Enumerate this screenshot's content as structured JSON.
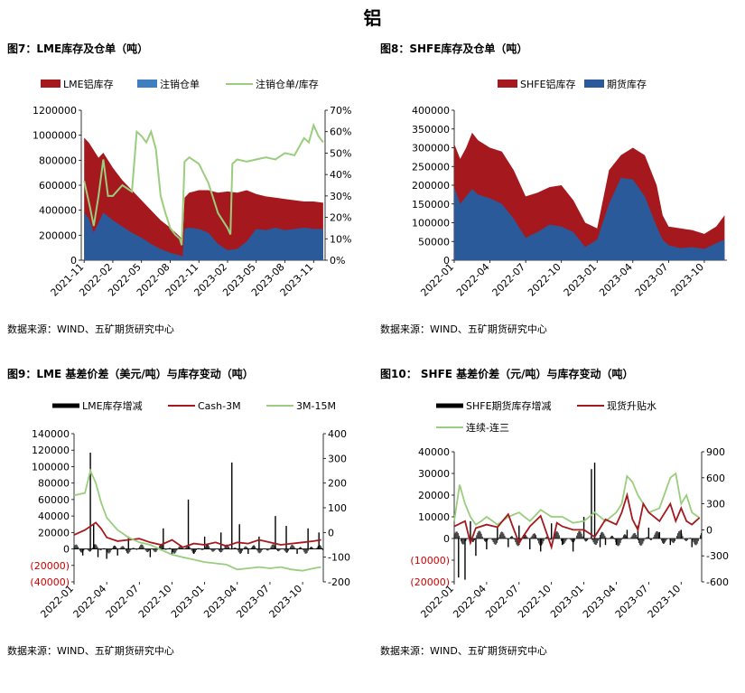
{
  "page_title": "铝",
  "colors": {
    "lme_stock": "#A5191E",
    "cancelled": "#3F7EC1",
    "ratio": "#9ACD7E",
    "shfe_stock": "#A5191E",
    "futures_stock": "#2A5A9A",
    "bars": "#000000",
    "cash3m": "#A5191E",
    "m3m15": "#9ACD7E",
    "negative_label": "#D00000"
  },
  "chart_data": [
    {
      "id": "fig7",
      "type": "area",
      "title": "图7：LME库存及仓单（吨）",
      "source": "数据来源：WIND、五矿期货研究中心",
      "legend": [
        "LME铝库存",
        "注销仓单",
        "注销仓单/库存"
      ],
      "x_ticks": [
        "2021-11",
        "2022-02",
        "2022-05",
        "2022-08",
        "2022-11",
        "2023-02",
        "2023-05",
        "2023-08",
        "2023-11"
      ],
      "y_left_ticks": [
        "0",
        "200000",
        "400000",
        "600000",
        "800000",
        "1000000",
        "1200000"
      ],
      "y_right_ticks": [
        "0%",
        "10%",
        "20%",
        "30%",
        "40%",
        "50%",
        "60%",
        "70%"
      ],
      "ylim_left": [
        0,
        1200000
      ],
      "ylim_right": [
        0,
        70
      ],
      "x_range_months": [
        -0.3,
        25.2
      ],
      "series": [
        {
          "name": "LME铝库存",
          "axis": "left",
          "x": [
            0,
            0.5,
            1,
            1.5,
            2,
            3,
            4,
            5,
            6,
            7,
            8,
            9,
            10,
            10.3,
            10.5,
            11,
            12,
            13,
            14,
            15,
            16,
            17,
            18,
            19,
            20,
            21,
            22,
            23,
            24,
            25
          ],
          "y": [
            980000,
            940000,
            880000,
            820000,
            860000,
            740000,
            640000,
            560000,
            480000,
            400000,
            320000,
            260000,
            190000,
            160000,
            500000,
            540000,
            560000,
            560000,
            540000,
            550000,
            540000,
            560000,
            530000,
            510000,
            500000,
            490000,
            480000,
            470000,
            470000,
            460000
          ]
        },
        {
          "name": "注销仓单",
          "axis": "left",
          "x": [
            0,
            0.5,
            1,
            1.5,
            2,
            3,
            4,
            5,
            6,
            7,
            8,
            9,
            10,
            10.3,
            10.5,
            11,
            12,
            13,
            14,
            15,
            16,
            17,
            18,
            19,
            20,
            21,
            22,
            23,
            24,
            25
          ],
          "y": [
            380000,
            330000,
            220000,
            300000,
            380000,
            320000,
            270000,
            220000,
            180000,
            130000,
            90000,
            60000,
            40000,
            30000,
            250000,
            260000,
            250000,
            220000,
            130000,
            80000,
            90000,
            150000,
            250000,
            240000,
            260000,
            240000,
            250000,
            260000,
            250000,
            250000
          ]
        },
        {
          "name": "注销仓单/库存",
          "axis": "right",
          "x": [
            0,
            0.6,
            1,
            1.5,
            2,
            2.5,
            3,
            4,
            5,
            5.5,
            6,
            6.5,
            7,
            7.5,
            8,
            8.5,
            9,
            9.5,
            10,
            10.2,
            10.5,
            11,
            12,
            13,
            14,
            15,
            15.3,
            15.5,
            16,
            17,
            18,
            19,
            20,
            21,
            22,
            23,
            23.5,
            24,
            24.5,
            25
          ],
          "y": [
            37,
            25,
            16,
            30,
            47,
            30,
            30,
            35,
            32,
            60,
            58,
            55,
            60,
            52,
            30,
            22,
            15,
            12,
            10,
            7,
            46,
            48,
            45,
            36,
            22,
            15,
            12,
            45,
            47,
            46,
            47,
            48,
            47,
            50,
            49,
            57,
            55,
            63,
            58,
            55
          ]
        }
      ]
    },
    {
      "id": "fig8",
      "type": "area",
      "title": "图8：SHFE库存及仓单（吨）",
      "source": "数据来源：WIND、五矿期货研究中心",
      "legend": [
        "SHFE铝库存",
        "期货库存"
      ],
      "x_ticks": [
        "2022-01",
        "2022-04",
        "2022-07",
        "2022-10",
        "2023-01",
        "2023-04",
        "2023-07",
        "2023-10"
      ],
      "y_left_ticks": [
        "0",
        "50000",
        "100000",
        "150000",
        "200000",
        "250000",
        "300000",
        "350000",
        "400000"
      ],
      "ylim_left": [
        0,
        400000
      ],
      "x_range_months": [
        0,
        22.9
      ],
      "series": [
        {
          "name": "SHFE铝库存",
          "x": [
            0,
            0.5,
            1,
            1.5,
            2,
            3,
            4,
            5,
            6,
            7,
            8,
            9,
            10,
            11,
            12,
            13,
            14,
            15,
            16,
            17,
            17.5,
            18,
            19,
            20,
            21,
            22,
            22.7
          ],
          "y": [
            310000,
            270000,
            300000,
            340000,
            320000,
            300000,
            290000,
            240000,
            170000,
            180000,
            195000,
            200000,
            160000,
            100000,
            85000,
            240000,
            280000,
            300000,
            280000,
            200000,
            120000,
            90000,
            85000,
            80000,
            70000,
            90000,
            120000
          ]
        },
        {
          "name": "期货库存",
          "x": [
            0,
            0.5,
            1,
            1.5,
            2,
            3,
            4,
            5,
            6,
            7,
            8,
            9,
            10,
            11,
            12,
            13,
            14,
            15,
            16,
            17,
            17.5,
            18,
            19,
            20,
            21,
            22,
            22.7
          ],
          "y": [
            195000,
            150000,
            170000,
            190000,
            175000,
            165000,
            150000,
            110000,
            60000,
            75000,
            95000,
            90000,
            75000,
            35000,
            55000,
            150000,
            220000,
            215000,
            170000,
            90000,
            55000,
            40000,
            32000,
            35000,
            30000,
            45000,
            55000
          ]
        }
      ]
    },
    {
      "id": "fig9",
      "type": "line",
      "title": "图9：LME 基差价差（美元/吨）与库存变动（吨）",
      "source": "数据来源：WIND、五矿期货研究中心",
      "legend": [
        "LME库存增减",
        "Cash-3M",
        "3M-15M"
      ],
      "x_ticks": [
        "2022-01",
        "2022-04",
        "2022-07",
        "2022-10",
        "2023-01",
        "2023-04",
        "2023-07",
        "2023-10"
      ],
      "y_left_ticks": [
        "(40000)",
        "(20000)",
        "0",
        "20000",
        "40000",
        "60000",
        "80000",
        "100000",
        "120000",
        "140000"
      ],
      "y_right_ticks": [
        "-200",
        "-100",
        "0",
        "100",
        "200",
        "300",
        "400"
      ],
      "ylim_left": [
        -40000,
        140000
      ],
      "ylim_right": [
        -200,
        400
      ],
      "x_range_months": [
        0,
        22.9
      ],
      "bar_spikes": [
        [
          0.8,
          -8000
        ],
        [
          1.5,
          117000
        ],
        [
          1.8,
          30000
        ],
        [
          2.2,
          -10000
        ],
        [
          3,
          -12000
        ],
        [
          4,
          -8000
        ],
        [
          5,
          15000
        ],
        [
          7,
          -10000
        ],
        [
          8.2,
          25000
        ],
        [
          9,
          -6000
        ],
        [
          10.5,
          60000
        ],
        [
          11,
          -6000
        ],
        [
          12,
          15000
        ],
        [
          13.5,
          20000
        ],
        [
          14.5,
          105000
        ],
        [
          15.2,
          30000
        ],
        [
          16,
          -6000
        ],
        [
          17,
          15000
        ],
        [
          18.5,
          40000
        ],
        [
          19.5,
          28000
        ],
        [
          20.5,
          -6000
        ],
        [
          21.5,
          25000
        ],
        [
          22.5,
          20000
        ]
      ],
      "series": [
        {
          "name": "Cash-3M",
          "axis": "right",
          "x": [
            0,
            1,
            2,
            2.5,
            3,
            4,
            5,
            6,
            7,
            8,
            9,
            10,
            11,
            12,
            13,
            14,
            15,
            16,
            17,
            18,
            19,
            20,
            21,
            22,
            22.7
          ],
          "y": [
            -10,
            10,
            40,
            15,
            -20,
            -35,
            -30,
            -25,
            -40,
            -50,
            -30,
            -60,
            -45,
            -50,
            -40,
            -55,
            -40,
            -45,
            -30,
            -40,
            -50,
            -45,
            -40,
            -35,
            -30
          ]
        },
        {
          "name": "3M-15M",
          "axis": "right",
          "x": [
            0,
            1,
            1.5,
            2,
            2.5,
            3,
            4,
            5,
            6,
            7,
            8,
            9,
            10,
            11,
            12,
            13,
            14,
            15,
            16,
            17,
            18,
            19,
            20,
            21,
            22,
            22.7
          ],
          "y": [
            150,
            160,
            250,
            200,
            120,
            60,
            10,
            -20,
            -40,
            -50,
            -70,
            -90,
            -100,
            -110,
            -120,
            -125,
            -130,
            -150,
            -145,
            -140,
            -145,
            -140,
            -150,
            -155,
            -145,
            -140
          ]
        }
      ]
    },
    {
      "id": "fig10",
      "type": "line",
      "title": "图10： SHFE 基差价差（元/吨）与库存变动（吨）",
      "source": "数据来源：WIND、五矿期货研究中心",
      "legend": [
        "SHFE期货库存增减",
        "现货升贴水",
        "连续-连三"
      ],
      "x_ticks": [
        "2022-01",
        "2022-04",
        "2022-07",
        "2022-10",
        "2023-01",
        "2023-04",
        "2023-07",
        "2023-10"
      ],
      "y_left_ticks": [
        "(20000)",
        "(10000)",
        "0",
        "10000",
        "20000",
        "30000",
        "40000"
      ],
      "y_right_ticks": [
        "-600",
        "-300",
        "0",
        "300",
        "600",
        "900"
      ],
      "ylim_left": [
        -20000,
        40000
      ],
      "ylim_right": [
        -600,
        900
      ],
      "x_range_months": [
        0,
        22.9
      ],
      "bar_spikes": [
        [
          0.4,
          -18000
        ],
        [
          1,
          -19000
        ],
        [
          1.5,
          8000
        ],
        [
          2,
          -8000
        ],
        [
          3,
          -5000
        ],
        [
          4,
          5000
        ],
        [
          5,
          -4000
        ],
        [
          6,
          6000
        ],
        [
          7,
          -5000
        ],
        [
          8,
          -6000
        ],
        [
          9,
          7000
        ],
        [
          10,
          -3000
        ],
        [
          11,
          -6000
        ],
        [
          12,
          10000
        ],
        [
          12.7,
          32000
        ],
        [
          13,
          35000
        ],
        [
          13.5,
          -4000
        ],
        [
          14,
          -3000
        ],
        [
          15,
          -3000
        ],
        [
          16,
          4000
        ],
        [
          17,
          6000
        ],
        [
          18,
          5000
        ],
        [
          19,
          3000
        ],
        [
          20,
          -3000
        ],
        [
          21,
          4000
        ],
        [
          22,
          -4000
        ]
      ],
      "series": [
        {
          "name": "现货升贴水",
          "axis": "right",
          "x": [
            0,
            1,
            1.5,
            2,
            3,
            4,
            5,
            5.5,
            6,
            7,
            8,
            9,
            9.5,
            10,
            11,
            12,
            13,
            14,
            15,
            15.5,
            16,
            16.5,
            17,
            17.5,
            18,
            19,
            20,
            20.5,
            21,
            21.5,
            22,
            22.7
          ],
          "y": [
            40,
            100,
            -150,
            20,
            60,
            30,
            180,
            10,
            -150,
            40,
            160,
            -200,
            80,
            40,
            0,
            0,
            -80,
            120,
            60,
            200,
            400,
            120,
            0,
            300,
            200,
            100,
            300,
            100,
            250,
            100,
            60,
            140
          ]
        },
        {
          "name": "连续-连三",
          "axis": "right",
          "x": [
            0,
            0.5,
            1,
            1.5,
            2,
            2.5,
            3,
            4,
            5,
            6,
            7,
            8,
            9,
            10,
            11,
            12,
            13,
            14,
            15,
            15.5,
            16,
            16.5,
            17,
            17.5,
            18,
            19,
            20,
            20.5,
            21,
            21.5,
            22,
            22.7
          ],
          "y": [
            100,
            520,
            300,
            150,
            60,
            100,
            150,
            60,
            150,
            200,
            100,
            230,
            150,
            150,
            80,
            100,
            200,
            100,
            200,
            300,
            620,
            550,
            400,
            300,
            200,
            250,
            600,
            650,
            300,
            400,
            200,
            140
          ]
        }
      ]
    }
  ]
}
